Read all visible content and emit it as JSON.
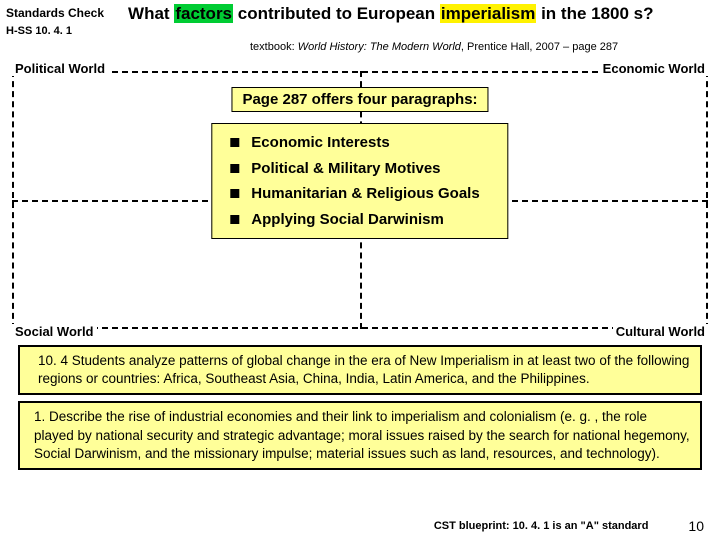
{
  "header": {
    "standards_check": "Standards Check",
    "code": "H-SS 10. 4. 1",
    "question_pre": "What ",
    "question_factors": "factors",
    "question_mid": " contributed to European ",
    "question_imperialism": "imperialism",
    "question_post": " in the 1800 s?",
    "textbook_label": "textbook: ",
    "textbook_title": "World History: The Modern World",
    "textbook_pub": ", Prentice Hall, 2007 ",
    "textbook_page": "– page 287"
  },
  "quadrant": {
    "tl": "Political World",
    "tr": "Economic World",
    "bl": "Social World",
    "br": "Cultural World",
    "para_heading": "Page 287 offers four paragraphs:",
    "items": [
      "Economic Interests",
      "Political & Military Motives",
      "Humanitarian & Religious Goals",
      "Applying Social Darwinism"
    ]
  },
  "boxes": {
    "box1": "10. 4 Students analyze patterns of global change in the era of New Imperialism in at least two of the following regions or countries: Africa, Southeast Asia, China, India, Latin America, and the Philippines.",
    "box2": "1. Describe the rise of industrial economies and their link to imperialism and colonialism (e. g. , the role played by national security and strategic advantage; moral issues raised by the search for national hegemony, Social Darwinism, and the missionary impulse; material issues such as land, resources, and technology)."
  },
  "footer": {
    "cst": "CST blueprint: 10. 4. 1 is an \"A\" standard",
    "page": "10"
  },
  "colors": {
    "highlight_green": "#00cc33",
    "highlight_yellow": "#fff200",
    "box_bg": "#ffff99"
  }
}
